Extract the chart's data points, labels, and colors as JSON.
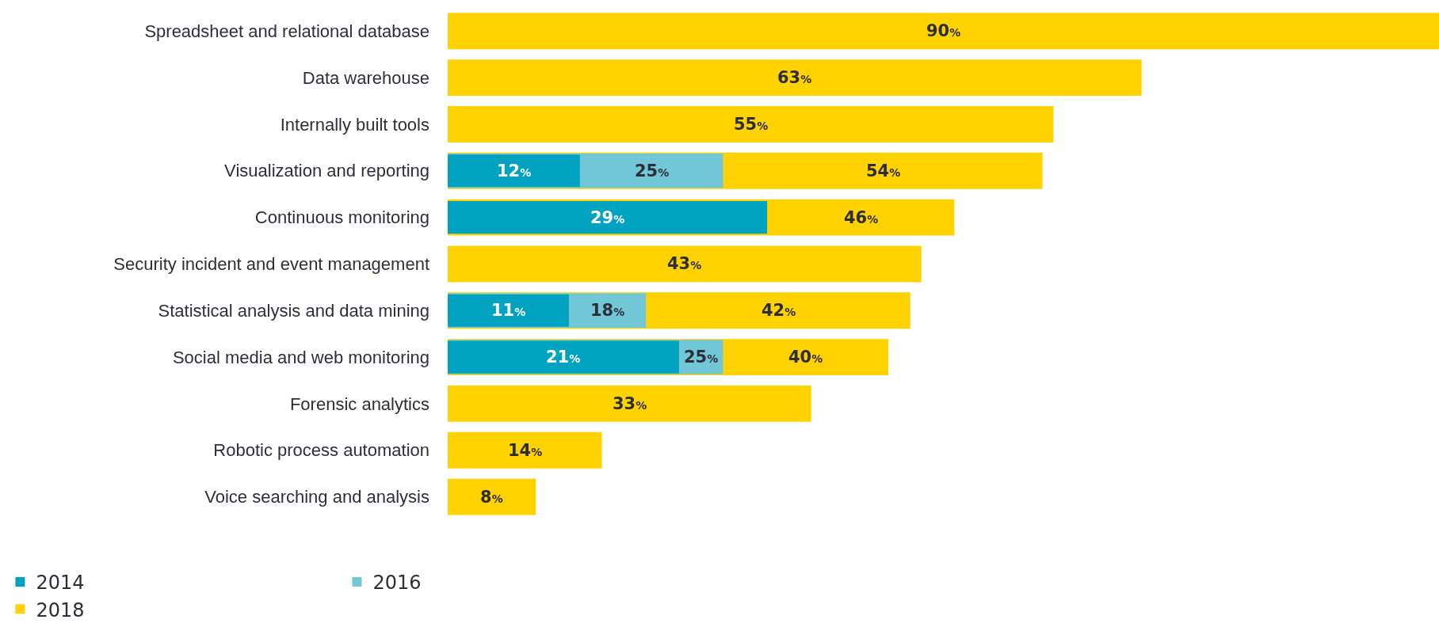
{
  "chart_data": {
    "type": "bar",
    "orientation": "horizontal",
    "categories": [
      "Spreadsheet and relational database",
      "Data warehouse",
      "Internally built tools",
      "Visualization and reporting",
      "Continuous monitoring",
      "Security incident and event management",
      "Statistical analysis and data mining",
      "Social media and web monitoring",
      "Forensic analytics",
      "Robotic process automation",
      "Voice searching and analysis"
    ],
    "series": [
      {
        "name": "2014",
        "color": "#00a3bf",
        "values": [
          null,
          null,
          null,
          12,
          29,
          null,
          11,
          21,
          null,
          null,
          null
        ],
        "value_labels": [
          null,
          null,
          null,
          "12%",
          "29%",
          null,
          "11%",
          "21%",
          null,
          null,
          null
        ]
      },
      {
        "name": "2016",
        "color": "#72c7d6",
        "values": [
          null,
          null,
          null,
          25,
          null,
          null,
          18,
          25,
          null,
          null,
          null
        ],
        "value_labels": [
          null,
          null,
          null,
          "25%",
          null,
          null,
          "18%",
          "25%",
          null,
          null,
          null
        ]
      },
      {
        "name": "2018",
        "color": "#ffd200",
        "values": [
          90,
          63,
          55,
          54,
          46,
          43,
          42,
          40,
          33,
          14,
          8
        ],
        "value_labels": [
          "90%",
          "63%",
          "55%",
          "54%",
          "46%",
          "43%",
          "42%",
          "40%",
          "33%",
          "14%",
          "8%"
        ]
      }
    ],
    "xlim": [
      0,
      90
    ],
    "legend": "bottom"
  }
}
